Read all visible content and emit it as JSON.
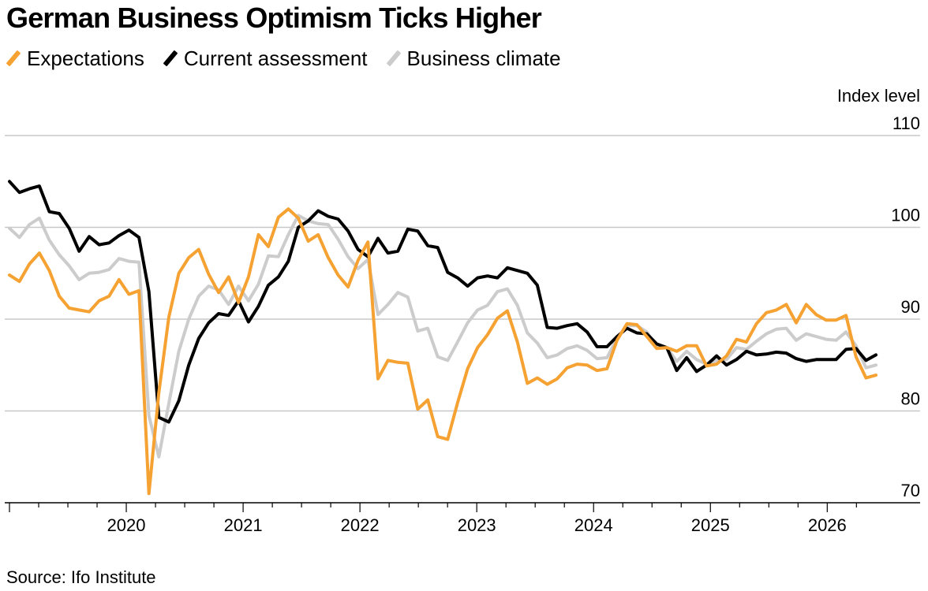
{
  "header": {
    "title": "German Business Optimism Ticks Higher"
  },
  "legend": [
    {
      "label": "Expectations",
      "color": "#f5a233"
    },
    {
      "label": "Current assessment",
      "color": "#000000"
    },
    {
      "label": "Business climate",
      "color": "#cccccc"
    }
  ],
  "footer": {
    "source": "Source: Ifo Institute"
  },
  "chart_data": {
    "type": "line",
    "title": "German Business Optimism Ticks Higher",
    "ylabel": "Index level",
    "ylim": [
      70,
      110
    ],
    "yticks": [
      70,
      80,
      90,
      100,
      110
    ],
    "x_labels": [
      "2020",
      "2021",
      "2022",
      "2023",
      "2024",
      "2025",
      "2026"
    ],
    "x_start": "2019-01",
    "x_end": "2026-06",
    "grid": "horizontal",
    "legend_position": "top-left",
    "series": [
      {
        "name": "Expectations",
        "color": "#f5a233",
        "values": [
          94.8,
          94.1,
          96.0,
          97.2,
          95.3,
          92.5,
          91.2,
          91.0,
          90.8,
          92.0,
          92.5,
          94.3,
          92.7,
          93.1,
          71.0,
          82.0,
          90.2,
          95.0,
          96.7,
          97.6,
          94.9,
          92.9,
          94.6,
          91.8,
          94.6,
          99.2,
          97.9,
          101.1,
          102.0,
          101.0,
          98.5,
          99.2,
          96.7,
          94.8,
          93.5,
          96.4,
          98.4,
          83.5,
          85.5,
          85.3,
          85.2,
          80.2,
          81.2,
          77.2,
          76.9,
          80.9,
          84.6,
          86.9,
          88.3,
          90.1,
          90.9,
          87.5,
          83.0,
          83.6,
          82.9,
          83.5,
          84.7,
          85.1,
          85.0,
          84.4,
          84.6,
          87.7,
          89.5,
          89.4,
          88.1,
          86.8,
          86.9,
          86.5,
          87.1,
          87.1,
          84.9,
          85.1,
          86.0,
          87.8,
          87.5,
          89.5,
          90.7,
          91.0,
          91.6,
          89.6,
          91.6,
          90.5,
          89.9,
          89.9,
          90.4,
          85.9,
          83.6,
          83.9
        ]
      },
      {
        "name": "Current assessment",
        "color": "#000000",
        "values": [
          105.0,
          103.8,
          104.2,
          104.5,
          101.7,
          101.5,
          99.9,
          97.4,
          99.0,
          98.1,
          98.3,
          99.1,
          99.7,
          98.9,
          93.0,
          79.3,
          78.8,
          81.1,
          85.0,
          87.9,
          89.6,
          90.6,
          90.4,
          92.0,
          89.7,
          91.4,
          93.7,
          94.6,
          96.3,
          100.0,
          100.7,
          101.8,
          101.2,
          100.9,
          99.6,
          97.6,
          96.8,
          98.8,
          97.2,
          97.4,
          99.8,
          99.6,
          98.0,
          97.8,
          95.1,
          94.5,
          93.6,
          94.5,
          94.7,
          94.5,
          95.6,
          95.3,
          95.0,
          93.7,
          89.1,
          89.0,
          89.3,
          89.5,
          88.6,
          87.0,
          87.0,
          88.1,
          89.0,
          88.5,
          88.4,
          87.3,
          86.9,
          84.4,
          85.8,
          84.3,
          85.0,
          86.0,
          85.0,
          85.6,
          86.5,
          86.1,
          86.2,
          86.4,
          86.3,
          85.7,
          85.4,
          85.6,
          85.6,
          85.6,
          86.7,
          86.8,
          85.5,
          86.1
        ]
      },
      {
        "name": "Business climate",
        "color": "#cccccc",
        "values": [
          99.9,
          98.9,
          100.3,
          101.0,
          98.6,
          97.0,
          95.8,
          94.3,
          95.0,
          95.1,
          95.4,
          96.6,
          96.3,
          96.2,
          79.5,
          75.0,
          80.8,
          86.5,
          90.0,
          92.5,
          93.6,
          93.2,
          91.6,
          93.6,
          92.0,
          93.8,
          96.9,
          96.8,
          99.2,
          101.3,
          100.7,
          100.4,
          100.3,
          98.7,
          96.8,
          95.5,
          96.5,
          90.5,
          91.6,
          92.9,
          92.4,
          88.7,
          89.0,
          85.9,
          85.5,
          87.5,
          89.6,
          91.0,
          91.5,
          93.0,
          93.3,
          91.5,
          88.5,
          87.4,
          85.8,
          86.1,
          86.8,
          87.1,
          86.6,
          85.7,
          85.8,
          87.9,
          89.3,
          89.3,
          88.6,
          87.0,
          86.9,
          85.4,
          86.5,
          85.6,
          85.1,
          85.5,
          85.6,
          86.9,
          86.7,
          87.6,
          88.4,
          88.9,
          89.0,
          87.7,
          88.4,
          88.1,
          87.8,
          87.7,
          88.6,
          87.1,
          84.7,
          85.0
        ]
      }
    ]
  }
}
